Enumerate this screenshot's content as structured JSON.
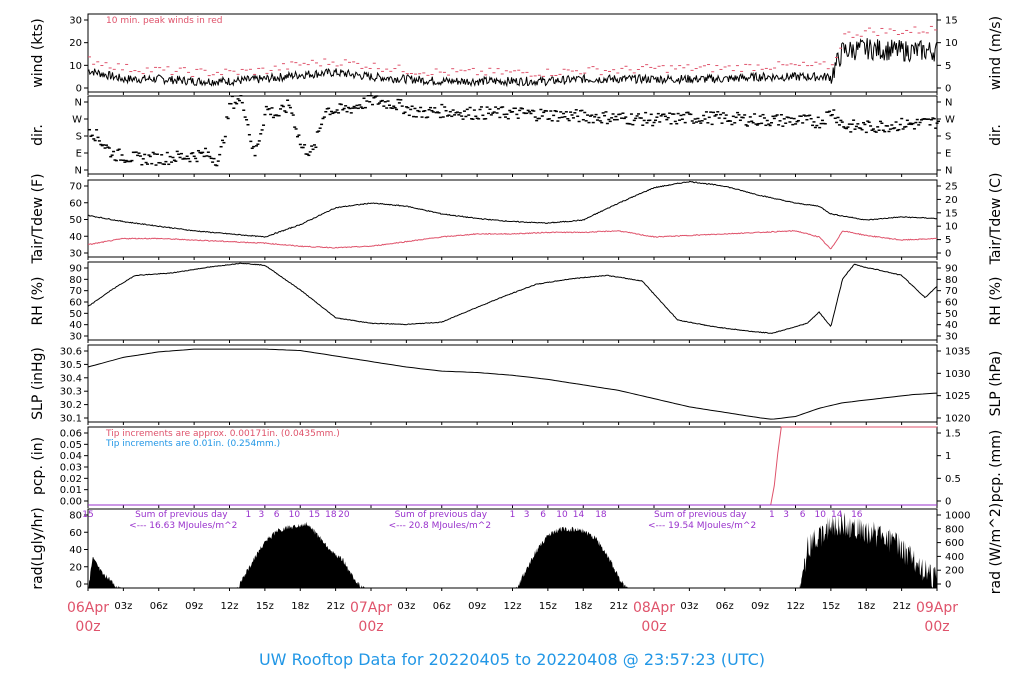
{
  "title": "UW Rooftop Data for 20220405  to  20220408 @ 23:57:23  (UTC)",
  "colors": {
    "red": "#df536b",
    "blue": "#2297e6",
    "purple": "#9932cc",
    "black": "#000000"
  },
  "x_axis": {
    "hour_labels": [
      "03z",
      "06z",
      "09z",
      "12z",
      "15z",
      "18z",
      "21z"
    ],
    "day_labels": [
      {
        "date": "06Apr",
        "hour": "00z"
      },
      {
        "date": "07Apr",
        "hour": "00z"
      },
      {
        "date": "08Apr",
        "hour": "00z"
      },
      {
        "date": "09Apr",
        "hour": "00z"
      }
    ]
  },
  "chart_data": [
    {
      "type": "line",
      "ylabel": "wind (kts)",
      "ylabel_right": "wind (m/s)",
      "ylim": [
        0,
        36
      ],
      "yticks": [
        "0",
        "10",
        "20",
        "30"
      ],
      "yticks_right": [
        "0",
        "5",
        "10",
        "15"
      ],
      "annotation": "10 min. peak winds in red",
      "series": [
        {
          "color": "#000000",
          "x": [
            0,
            3,
            6,
            9,
            12,
            15,
            18,
            21,
            24,
            27,
            30,
            33,
            36,
            39,
            42,
            45,
            48,
            51,
            54,
            57,
            60,
            63,
            64,
            66,
            69,
            72
          ],
          "values": [
            10,
            6,
            6,
            5,
            5,
            6,
            8,
            9,
            7,
            6,
            5,
            5,
            5,
            5,
            6,
            6,
            6,
            6,
            6,
            7,
            7,
            7,
            19,
            20,
            19,
            19
          ]
        },
        {
          "color": "#df536b",
          "x": [
            0,
            3,
            6,
            9,
            12,
            15,
            18,
            21,
            24,
            27,
            30,
            33,
            36,
            39,
            42,
            45,
            48,
            51,
            54,
            57,
            60,
            63,
            64,
            66,
            69,
            72
          ],
          "values": [
            15,
            11,
            10,
            9,
            9,
            10,
            13,
            14,
            12,
            10,
            9,
            9,
            9,
            9,
            10,
            10,
            11,
            11,
            11,
            12,
            12,
            12,
            26,
            28,
            28,
            29
          ]
        }
      ]
    },
    {
      "type": "scatter",
      "ylabel": "dir.",
      "ylabel_right": "dir.",
      "ylim": [
        0,
        360
      ],
      "yticks": [
        "N",
        "E",
        "S",
        "W",
        "N"
      ],
      "yticks_right": [
        "N",
        "E",
        "S",
        "W",
        "N"
      ],
      "series": [
        {
          "color": "#000000",
          "x": [
            0,
            2,
            4,
            6,
            8,
            10,
            11,
            12,
            13,
            14,
            15,
            16,
            17,
            18,
            19,
            20,
            21,
            22,
            24,
            26,
            28,
            30,
            32,
            36,
            40,
            44,
            48,
            52,
            56,
            60,
            62,
            63,
            64,
            66,
            68,
            70,
            72
          ],
          "values": [
            210,
            90,
            70,
            70,
            80,
            90,
            60,
            330,
            340,
            80,
            300,
            270,
            320,
            120,
            100,
            300,
            290,
            300,
            340,
            320,
            280,
            290,
            280,
            280,
            270,
            260,
            250,
            260,
            250,
            245,
            240,
            290,
            220,
            215,
            225,
            230,
            240
          ]
        }
      ]
    },
    {
      "type": "line",
      "ylabel": "Tair/Tdew (F)",
      "ylabel_right": "Tair/Tdew (C)",
      "ylim": [
        25,
        75
      ],
      "yticks": [
        "30",
        "40",
        "50",
        "60",
        "70"
      ],
      "yticks_right": [
        "0",
        "5",
        "10",
        "15",
        "20",
        "25"
      ],
      "series": [
        {
          "color": "#000000",
          "x": [
            0,
            3,
            6,
            9,
            12,
            15,
            18,
            21,
            24,
            27,
            30,
            33,
            36,
            39,
            42,
            45,
            48,
            51,
            54,
            57,
            60,
            62,
            63,
            66,
            69,
            72
          ],
          "values": [
            52,
            48,
            45,
            42,
            40,
            38,
            46,
            57,
            60,
            58,
            53,
            50,
            48,
            47,
            49,
            60,
            70,
            74,
            71,
            65,
            60,
            58,
            53,
            49,
            51,
            50
          ]
        },
        {
          "color": "#df536b",
          "x": [
            0,
            3,
            6,
            9,
            12,
            15,
            18,
            21,
            24,
            27,
            30,
            33,
            36,
            39,
            42,
            45,
            48,
            51,
            54,
            57,
            60,
            62,
            63,
            64,
            66,
            69,
            72
          ],
          "values": [
            33,
            37,
            37,
            36,
            35,
            34,
            32,
            31,
            32,
            35,
            38,
            40,
            40,
            41,
            41,
            42,
            38,
            39,
            40,
            41,
            42,
            38,
            30,
            42,
            39,
            36,
            37
          ]
        }
      ]
    },
    {
      "type": "line",
      "ylabel": "RH (%)",
      "ylabel_right": "RH (%)",
      "ylim": [
        20,
        90
      ],
      "yticks": [
        "30",
        "40",
        "50",
        "60",
        "70",
        "80",
        "90"
      ],
      "yticks_right": [
        "30",
        "40",
        "50",
        "60",
        "70",
        "80",
        "90"
      ],
      "series": [
        {
          "color": "#000000",
          "x": [
            0,
            2,
            4,
            7,
            10,
            13,
            15,
            18,
            21,
            24,
            27,
            30,
            32,
            35,
            38,
            41,
            44,
            47,
            50,
            53,
            56,
            58,
            61,
            62,
            63,
            64,
            65,
            66,
            67,
            69,
            71,
            72
          ],
          "values": [
            50,
            65,
            78,
            80,
            85,
            89,
            87,
            65,
            40,
            35,
            34,
            36,
            45,
            58,
            70,
            75,
            78,
            73,
            38,
            32,
            28,
            26,
            35,
            45,
            32,
            75,
            88,
            85,
            83,
            78,
            58,
            68
          ]
        }
      ]
    },
    {
      "type": "line",
      "ylabel": "SLP (inHg)",
      "ylabel_right": "SLP (hPa)",
      "ylim": [
        30.05,
        30.61
      ],
      "yticks": [
        "30.1",
        "30.2",
        "30.3",
        "30.4",
        "30.5",
        "30.6"
      ],
      "yticks_right": [
        "1020",
        "1025",
        "1030",
        "1035"
      ],
      "series": [
        {
          "color": "#000000",
          "x": [
            0,
            3,
            6,
            9,
            12,
            15,
            18,
            21,
            24,
            27,
            30,
            33,
            36,
            39,
            42,
            45,
            48,
            51,
            54,
            57,
            58,
            60,
            62,
            64,
            66,
            68,
            70,
            72
          ],
          "values": [
            30.45,
            30.52,
            30.56,
            30.58,
            30.58,
            30.58,
            30.57,
            30.53,
            30.49,
            30.45,
            30.42,
            30.41,
            30.39,
            30.36,
            30.32,
            30.28,
            30.22,
            30.16,
            30.12,
            30.08,
            30.07,
            30.09,
            30.15,
            30.19,
            30.21,
            30.23,
            30.25,
            30.26
          ]
        }
      ]
    },
    {
      "type": "line",
      "ylabel": "pcp. (in)",
      "ylabel_right": "pcp. (mm)",
      "ylim": [
        0,
        0.06
      ],
      "yticks": [
        "0.00",
        "0.01",
        "0.02",
        "0.03",
        "0.04",
        "0.05",
        "0.06"
      ],
      "yticks_right": [
        "0",
        "0.5",
        "1",
        "1.5"
      ],
      "notes": [
        {
          "text": "Tip increments are approx. 0.00171in. (0.0435mm.)",
          "color": "#df536b"
        },
        {
          "text": "Tip increments are 0.01in. (0.254mm.)",
          "color": "#2297e6"
        }
      ],
      "series": [
        {
          "color": "#df536b",
          "x": [
            0,
            58.0,
            58.4,
            58.7,
            72
          ],
          "values": [
            0,
            0,
            0.03,
            0.06,
            0.06
          ]
        },
        {
          "color": "#9932cc",
          "x": [
            0,
            72
          ],
          "values": [
            0,
            0
          ]
        }
      ]
    },
    {
      "type": "area",
      "ylabel": "rad(Lgly/hr)",
      "ylabel_right": "rad (W/m^2)",
      "ylim": [
        0,
        90
      ],
      "yticks": [
        "0",
        "20",
        "40",
        "60",
        "80"
      ],
      "yticks_right": [
        "0",
        "200",
        "400",
        "600",
        "800",
        "1000"
      ],
      "hour_marks": [
        {
          "x": 0,
          "label": "15"
        },
        {
          "x": 13.6,
          "label": "1"
        },
        {
          "x": 14.7,
          "label": "3"
        },
        {
          "x": 16.0,
          "label": "6"
        },
        {
          "x": 17.5,
          "label": "10"
        },
        {
          "x": 19.2,
          "label": "15"
        },
        {
          "x": 20.6,
          "label": "18"
        },
        {
          "x": 21.7,
          "label": "20"
        },
        {
          "x": 36.0,
          "label": "1"
        },
        {
          "x": 37.2,
          "label": "3"
        },
        {
          "x": 38.6,
          "label": "6"
        },
        {
          "x": 40.2,
          "label": "10"
        },
        {
          "x": 41.6,
          "label": "14"
        },
        {
          "x": 43.5,
          "label": "18"
        },
        {
          "x": 58.0,
          "label": "1"
        },
        {
          "x": 59.2,
          "label": "3"
        },
        {
          "x": 60.6,
          "label": "6"
        },
        {
          "x": 62.1,
          "label": "10"
        },
        {
          "x": 63.5,
          "label": "14"
        },
        {
          "x": 65.2,
          "label": "16"
        }
      ],
      "day_sums": [
        {
          "x": 4.0,
          "label": "Sum of previous day",
          "value": "<--- 16.63 MJoules/m^2"
        },
        {
          "x": 26.0,
          "label": "Sum of previous day",
          "value": "<--- 20.8 MJoules/m^2"
        },
        {
          "x": 48.0,
          "label": "Sum of previous day",
          "value": "<--- 19.54 MJoules/m^2"
        }
      ],
      "series": [
        {
          "color": "#000000",
          "x": [
            0,
            0.4,
            1.2,
            2.2,
            2.8,
            12.6,
            13,
            14,
            15,
            16,
            17,
            18,
            18.6,
            19,
            20,
            20.6,
            21,
            21.6,
            22.6,
            23.5,
            36.3,
            37,
            38,
            39,
            40,
            41,
            42,
            43,
            44,
            45,
            45.8,
            60.3,
            61,
            62,
            63,
            64,
            65,
            66,
            67,
            68,
            69,
            70,
            71,
            72
          ],
          "values": [
            0,
            38,
            20,
            8,
            0,
            0,
            10,
            35,
            55,
            68,
            72,
            75,
            76,
            70,
            55,
            45,
            40,
            35,
            12,
            0,
            0,
            20,
            45,
            62,
            70,
            70,
            68,
            60,
            42,
            15,
            0,
            0,
            60,
            75,
            85,
            88,
            82,
            80,
            75,
            70,
            60,
            45,
            35,
            25
          ]
        }
      ]
    }
  ]
}
